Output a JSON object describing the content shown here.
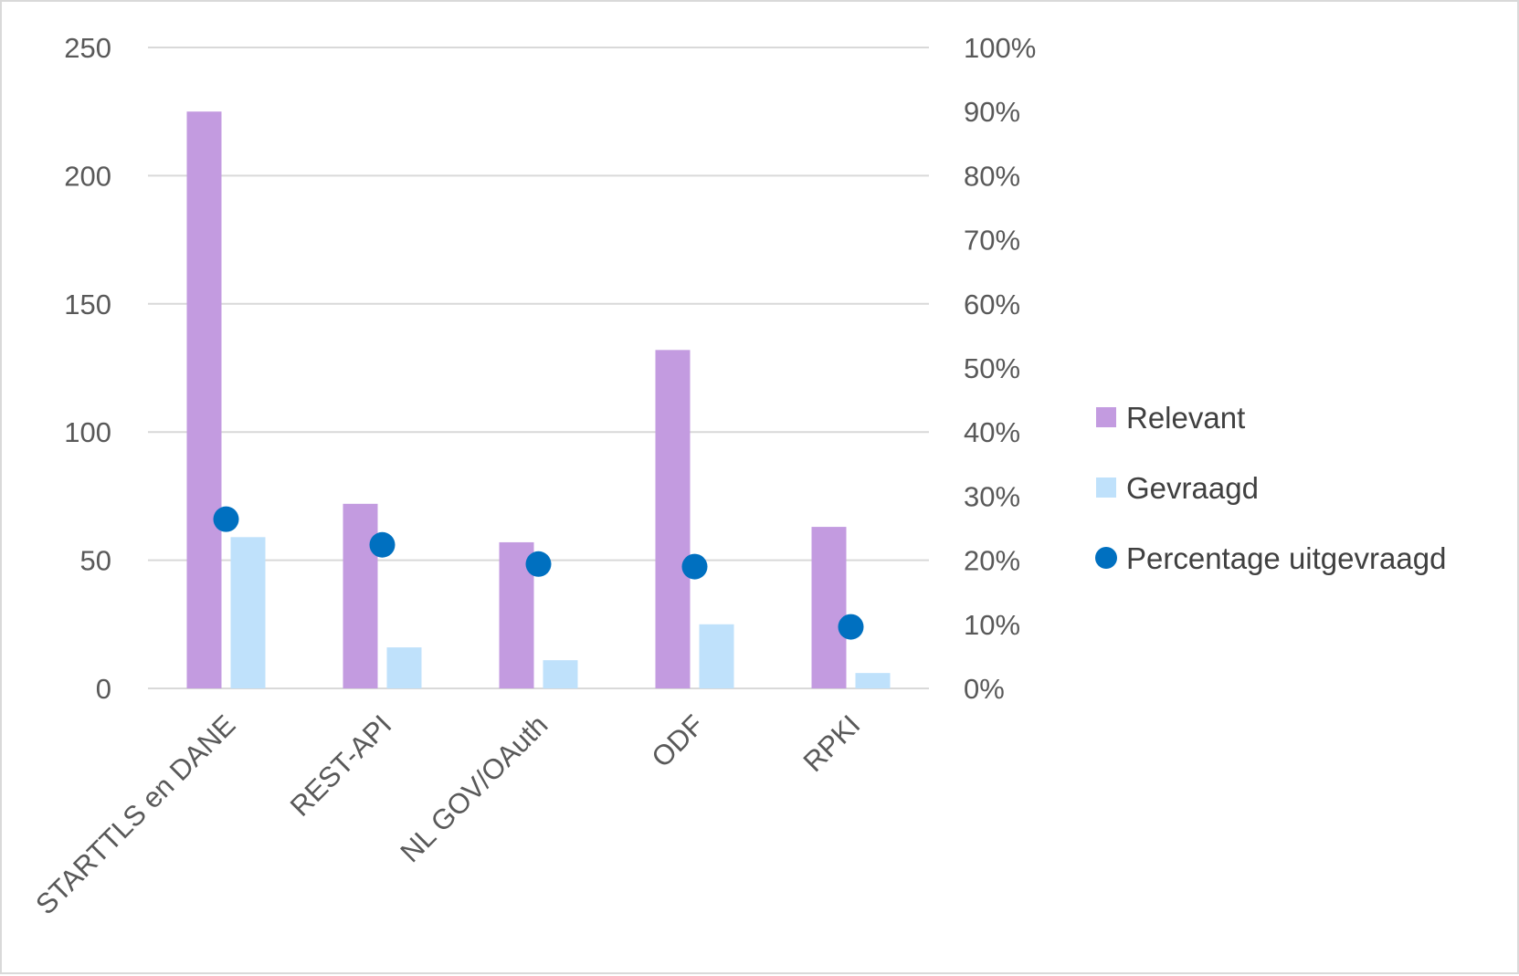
{
  "chart_data": {
    "type": "bar",
    "categories": [
      "STARTTLS en DANE",
      "REST-API",
      "NL GOV/OAuth",
      "ODF",
      "RPKI"
    ],
    "series": [
      {
        "name": "Relevant",
        "type": "bar",
        "axis": "left",
        "color": "#c39be0",
        "values": [
          225,
          72,
          57,
          132,
          63
        ]
      },
      {
        "name": "Gevraagd",
        "type": "bar",
        "axis": "left",
        "color": "#bfe1fb",
        "values": [
          59,
          16,
          11,
          25,
          6
        ]
      },
      {
        "name": "Percentage uitgevraagd",
        "type": "scatter",
        "axis": "right",
        "color": "#0070c0",
        "values": [
          0.264,
          0.224,
          0.194,
          0.19,
          0.096
        ]
      }
    ],
    "y_left": {
      "ylim": [
        0,
        250
      ],
      "ticks": [
        "0",
        "50",
        "100",
        "150",
        "200",
        "250"
      ]
    },
    "y_right": {
      "ylim": [
        0,
        1
      ],
      "ticks": [
        "0%",
        "10%",
        "20%",
        "30%",
        "40%",
        "50%",
        "60%",
        "70%",
        "80%",
        "90%",
        "100%"
      ]
    },
    "grid": true,
    "legend": "right",
    "gridline_color": "#d9d9d9"
  }
}
